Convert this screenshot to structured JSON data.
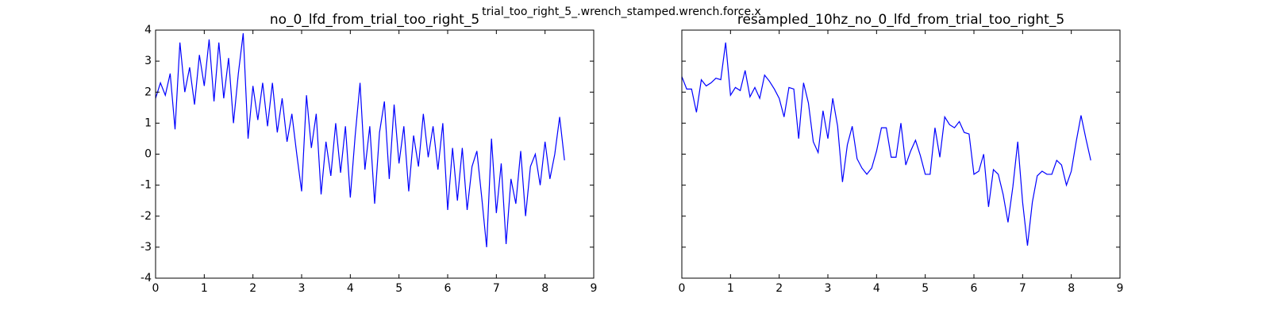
{
  "title": "trial_too_right_5_.wrench_stamped.wrench.force.x",
  "chart_data": [
    {
      "type": "line",
      "title": "no_0_lfd_from_trial_too_right_5",
      "x": [
        0,
        0.1,
        0.2,
        0.3,
        0.4,
        0.5,
        0.6,
        0.7,
        0.8,
        0.9,
        1,
        1.1,
        1.2,
        1.3,
        1.4,
        1.5,
        1.6,
        1.7,
        1.8,
        1.9,
        2,
        2.1,
        2.2,
        2.3,
        2.4,
        2.5,
        2.6,
        2.7,
        2.8,
        2.9,
        3,
        3.1,
        3.2,
        3.3,
        3.4,
        3.5,
        3.6,
        3.7,
        3.8,
        3.9,
        4,
        4.1,
        4.2,
        4.3,
        4.4,
        4.5,
        4.6,
        4.7,
        4.8,
        4.9,
        5,
        5.1,
        5.2,
        5.3,
        5.4,
        5.5,
        5.6,
        5.7,
        5.8,
        5.9,
        6,
        6.1,
        6.2,
        6.3,
        6.4,
        6.5,
        6.6,
        6.7,
        6.8,
        6.9,
        7,
        7.1,
        7.2,
        7.3,
        7.4,
        7.5,
        7.6,
        7.7,
        7.8,
        7.9,
        8,
        8.1,
        8.2,
        8.3,
        8.4
      ],
      "series": [
        {
          "color": "#0000ff",
          "values": [
            1.8,
            2.3,
            1.9,
            2.6,
            0.8,
            3.6,
            2.0,
            2.8,
            1.6,
            3.2,
            2.2,
            3.7,
            1.7,
            3.6,
            1.8,
            3.1,
            1.0,
            2.6,
            3.9,
            0.5,
            2.2,
            1.1,
            2.3,
            0.9,
            2.3,
            0.7,
            1.8,
            0.4,
            1.3,
            0.0,
            -1.2,
            1.9,
            0.2,
            1.3,
            -1.3,
            0.4,
            -0.7,
            1.0,
            -0.6,
            0.9,
            -1.4,
            0.6,
            2.3,
            -0.5,
            0.9,
            -1.6,
            0.7,
            1.7,
            -0.8,
            1.6,
            -0.3,
            0.9,
            -1.2,
            0.6,
            -0.4,
            1.3,
            -0.1,
            0.9,
            -0.5,
            1.0,
            -1.8,
            0.2,
            -1.5,
            0.2,
            -1.8,
            -0.4,
            0.1,
            -1.4,
            -3.0,
            0.5,
            -1.9,
            -0.3,
            -2.9,
            -0.8,
            -1.6,
            0.1,
            -2.0,
            -0.4,
            0.0,
            -1.0,
            0.4,
            -0.8,
            0.0,
            1.2,
            -0.2
          ]
        }
      ],
      "xlim": [
        0,
        9
      ],
      "xticks": [
        0,
        1,
        2,
        3,
        4,
        5,
        6,
        7,
        8,
        9
      ],
      "ylim": [
        -4,
        4
      ],
      "yticks": [
        -4,
        -3,
        -2,
        -1,
        0,
        1,
        2,
        3,
        4
      ],
      "show_ytick_labels": true,
      "grid": false
    },
    {
      "type": "line",
      "title": "resampled_10hz_no_0_lfd_from_trial_too_right_5",
      "x": [
        0,
        0.1,
        0.2,
        0.3,
        0.4,
        0.5,
        0.6,
        0.7,
        0.8,
        0.9,
        1,
        1.1,
        1.2,
        1.3,
        1.4,
        1.5,
        1.6,
        1.7,
        1.8,
        1.9,
        2,
        2.1,
        2.2,
        2.3,
        2.4,
        2.5,
        2.6,
        2.7,
        2.8,
        2.9,
        3,
        3.1,
        3.2,
        3.3,
        3.4,
        3.5,
        3.6,
        3.7,
        3.8,
        3.9,
        4,
        4.1,
        4.2,
        4.3,
        4.4,
        4.5,
        4.6,
        4.7,
        4.8,
        4.9,
        5,
        5.1,
        5.2,
        5.3,
        5.4,
        5.5,
        5.6,
        5.7,
        5.8,
        5.9,
        6,
        6.1,
        6.2,
        6.3,
        6.4,
        6.5,
        6.6,
        6.7,
        6.8,
        6.9,
        7,
        7.1,
        7.2,
        7.3,
        7.4,
        7.5,
        7.6,
        7.7,
        7.8,
        7.9,
        8,
        8.1,
        8.2,
        8.3,
        8.4
      ],
      "series": [
        {
          "color": "#0000ff",
          "values": [
            2.5,
            2.1,
            2.1,
            1.35,
            2.4,
            2.2,
            2.3,
            2.45,
            2.4,
            3.6,
            1.9,
            2.15,
            2.05,
            2.7,
            1.85,
            2.15,
            1.8,
            2.55,
            2.35,
            2.1,
            1.8,
            1.2,
            2.15,
            2.1,
            0.5,
            2.3,
            1.65,
            0.4,
            0.05,
            1.4,
            0.5,
            1.8,
            0.9,
            -0.9,
            0.3,
            0.9,
            -0.15,
            -0.45,
            -0.65,
            -0.45,
            0.1,
            0.85,
            0.85,
            -0.1,
            -0.1,
            1.0,
            -0.35,
            0.1,
            0.45,
            -0.05,
            -0.65,
            -0.65,
            0.85,
            -0.1,
            1.2,
            0.95,
            0.85,
            1.05,
            0.7,
            0.65,
            -0.65,
            -0.55,
            0.0,
            -1.7,
            -0.5,
            -0.65,
            -1.3,
            -2.2,
            -1.05,
            0.4,
            -1.55,
            -2.95,
            -1.55,
            -0.7,
            -0.55,
            -0.65,
            -0.65,
            -0.2,
            -0.35,
            -1.0,
            -0.55,
            0.4,
            1.25,
            0.5,
            -0.2
          ]
        }
      ],
      "xlim": [
        0,
        9
      ],
      "xticks": [
        0,
        1,
        2,
        3,
        4,
        5,
        6,
        7,
        8,
        9
      ],
      "ylim": [
        -4,
        4
      ],
      "yticks": [
        -4,
        -3,
        -2,
        -1,
        0,
        1,
        2,
        3,
        4
      ],
      "show_ytick_labels": false,
      "grid": false
    }
  ]
}
